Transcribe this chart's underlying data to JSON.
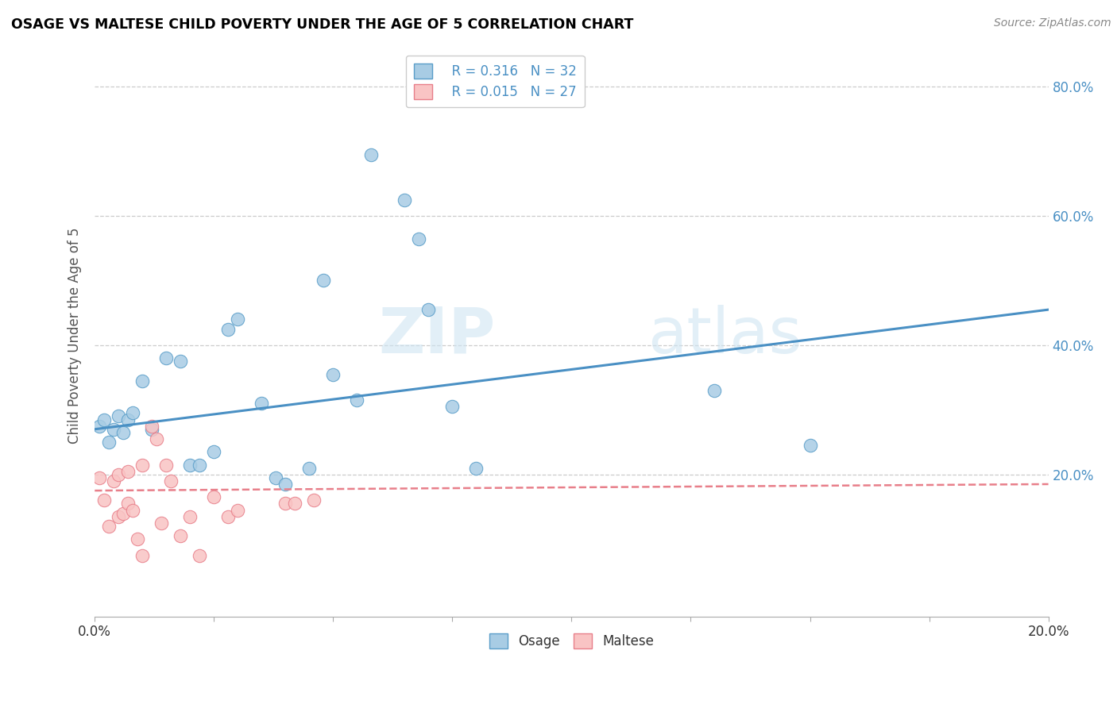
{
  "title": "OSAGE VS MALTESE CHILD POVERTY UNDER THE AGE OF 5 CORRELATION CHART",
  "source": "Source: ZipAtlas.com",
  "ylabel": "Child Poverty Under the Age of 5",
  "xlim": [
    0.0,
    0.2
  ],
  "ylim": [
    -0.02,
    0.85
  ],
  "xticks": [
    0.0,
    0.025,
    0.05,
    0.075,
    0.1,
    0.125,
    0.15,
    0.175,
    0.2
  ],
  "yticks": [
    0.2,
    0.4,
    0.6,
    0.8
  ],
  "ytick_labels": [
    "20.0%",
    "40.0%",
    "60.0%",
    "80.0%"
  ],
  "watermark_zip": "ZIP",
  "watermark_atlas": "atlas",
  "legend_r_osage": "R = 0.316",
  "legend_n_osage": "N = 32",
  "legend_r_maltese": "R = 0.015",
  "legend_n_maltese": "N = 27",
  "osage_color": "#a8cce4",
  "maltese_color": "#f9c4c4",
  "osage_edge_color": "#5a9ec9",
  "maltese_edge_color": "#e87f8a",
  "line_osage_color": "#4a90c4",
  "line_maltese_color": "#e87f8a",
  "osage_scatter": [
    [
      0.001,
      0.275
    ],
    [
      0.002,
      0.285
    ],
    [
      0.003,
      0.25
    ],
    [
      0.004,
      0.27
    ],
    [
      0.005,
      0.29
    ],
    [
      0.006,
      0.265
    ],
    [
      0.007,
      0.285
    ],
    [
      0.008,
      0.295
    ],
    [
      0.01,
      0.345
    ],
    [
      0.012,
      0.27
    ],
    [
      0.015,
      0.38
    ],
    [
      0.018,
      0.375
    ],
    [
      0.02,
      0.215
    ],
    [
      0.022,
      0.215
    ],
    [
      0.025,
      0.235
    ],
    [
      0.028,
      0.425
    ],
    [
      0.03,
      0.44
    ],
    [
      0.035,
      0.31
    ],
    [
      0.038,
      0.195
    ],
    [
      0.04,
      0.185
    ],
    [
      0.045,
      0.21
    ],
    [
      0.048,
      0.5
    ],
    [
      0.05,
      0.355
    ],
    [
      0.055,
      0.315
    ],
    [
      0.058,
      0.695
    ],
    [
      0.065,
      0.625
    ],
    [
      0.068,
      0.565
    ],
    [
      0.07,
      0.455
    ],
    [
      0.075,
      0.305
    ],
    [
      0.08,
      0.21
    ],
    [
      0.13,
      0.33
    ],
    [
      0.15,
      0.245
    ]
  ],
  "maltese_scatter": [
    [
      0.001,
      0.195
    ],
    [
      0.002,
      0.16
    ],
    [
      0.003,
      0.12
    ],
    [
      0.004,
      0.19
    ],
    [
      0.005,
      0.135
    ],
    [
      0.005,
      0.2
    ],
    [
      0.006,
      0.14
    ],
    [
      0.007,
      0.205
    ],
    [
      0.007,
      0.155
    ],
    [
      0.008,
      0.145
    ],
    [
      0.009,
      0.1
    ],
    [
      0.01,
      0.075
    ],
    [
      0.01,
      0.215
    ],
    [
      0.012,
      0.275
    ],
    [
      0.013,
      0.255
    ],
    [
      0.014,
      0.125
    ],
    [
      0.015,
      0.215
    ],
    [
      0.016,
      0.19
    ],
    [
      0.018,
      0.105
    ],
    [
      0.02,
      0.135
    ],
    [
      0.022,
      0.075
    ],
    [
      0.025,
      0.165
    ],
    [
      0.028,
      0.135
    ],
    [
      0.03,
      0.145
    ],
    [
      0.04,
      0.155
    ],
    [
      0.042,
      0.155
    ],
    [
      0.046,
      0.16
    ]
  ],
  "osage_line_x": [
    0.0,
    0.2
  ],
  "osage_line_y": [
    0.27,
    0.455
  ],
  "maltese_line_x": [
    0.0,
    0.2
  ],
  "maltese_line_y": [
    0.175,
    0.185
  ]
}
